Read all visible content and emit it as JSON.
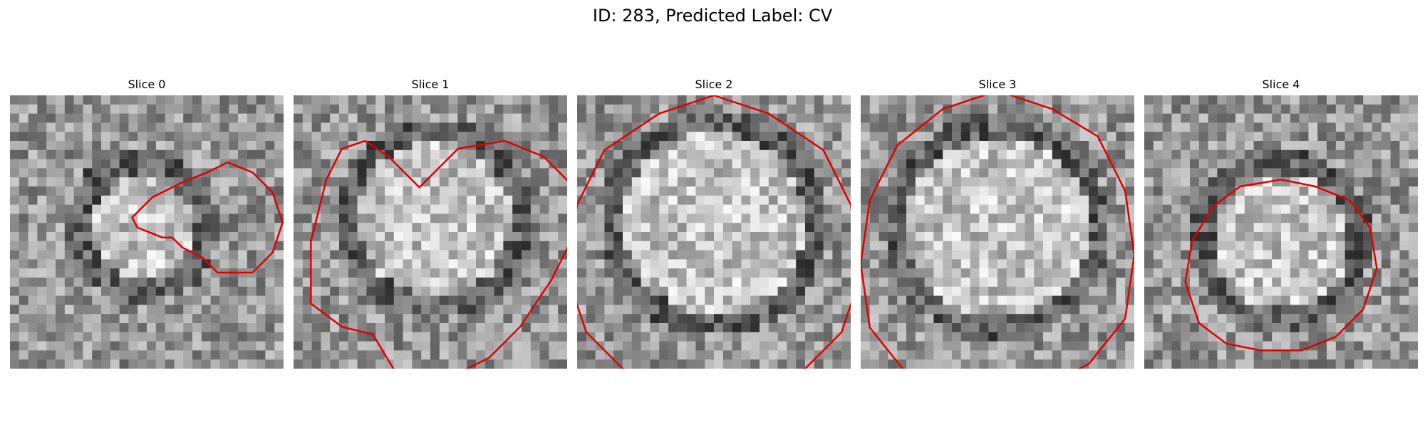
{
  "figure": {
    "title": "ID: 283, Predicted Label: CV",
    "contour_color": "#e00000"
  },
  "panels": [
    {
      "title": "Slice 0",
      "contour": [
        [
          4,
          2
        ],
        [
          6,
          2
        ],
        [
          8,
          4
        ],
        [
          12,
          6
        ],
        [
          15,
          9
        ],
        [
          22,
          9
        ],
        [
          26,
          5
        ],
        [
          28,
          -1
        ],
        [
          26,
          -7
        ],
        [
          22,
          -11
        ],
        [
          17,
          -13
        ],
        [
          13,
          -11
        ],
        [
          8,
          -9
        ],
        [
          2,
          -6
        ],
        [
          -2,
          -2
        ],
        [
          -1,
          0
        ]
      ]
    },
    {
      "title": "Slice 1",
      "contour": [
        [
          -2,
          -4
        ],
        [
          -6,
          -8
        ],
        [
          -9,
          -10
        ],
        [
          -12,
          -9
        ],
        [
          -14,
          -5
        ],
        [
          -16,
          3
        ],
        [
          -16,
          11
        ],
        [
          -12,
          14
        ],
        [
          -8,
          15
        ],
        [
          -5,
          20
        ],
        [
          -2,
          22
        ],
        [
          3,
          20
        ],
        [
          7,
          18
        ],
        [
          11,
          14
        ],
        [
          15,
          8
        ],
        [
          18,
          2
        ],
        [
          18,
          -4
        ],
        [
          14,
          -8
        ],
        [
          9,
          -10
        ],
        [
          3,
          -9
        ]
      ]
    },
    {
      "title": "Slice 2",
      "contour": [
        [
          0,
          -14
        ],
        [
          -6,
          -12
        ],
        [
          -12,
          -8
        ],
        [
          -15,
          -2
        ],
        [
          -16,
          6
        ],
        [
          -14,
          12
        ],
        [
          -10,
          16
        ],
        [
          -4,
          18
        ],
        [
          4,
          18
        ],
        [
          10,
          16
        ],
        [
          14,
          12
        ],
        [
          16,
          6
        ],
        [
          15,
          -2
        ],
        [
          12,
          -8
        ],
        [
          6,
          -12
        ]
      ]
    },
    {
      "title": "Slice 3",
      "contour": [
        [
          0,
          -15
        ],
        [
          -6,
          -13
        ],
        [
          -11,
          -9
        ],
        [
          -14,
          -3
        ],
        [
          -15,
          4
        ],
        [
          -14,
          11
        ],
        [
          -10,
          16
        ],
        [
          -4,
          18
        ],
        [
          4,
          18
        ],
        [
          10,
          15
        ],
        [
          14,
          10
        ],
        [
          15,
          3
        ],
        [
          14,
          -4
        ],
        [
          11,
          -10
        ],
        [
          6,
          -13
        ]
      ]
    },
    {
      "title": "Slice 4",
      "contour": [
        [
          0,
          -9
        ],
        [
          -6,
          -8
        ],
        [
          -10,
          -5
        ],
        [
          -13,
          0
        ],
        [
          -14,
          6
        ],
        [
          -12,
          12
        ],
        [
          -8,
          15
        ],
        [
          -3,
          16
        ],
        [
          3,
          16
        ],
        [
          8,
          14
        ],
        [
          12,
          10
        ],
        [
          14,
          4
        ],
        [
          13,
          -2
        ],
        [
          10,
          -6
        ],
        [
          5,
          -8
        ]
      ]
    }
  ]
}
